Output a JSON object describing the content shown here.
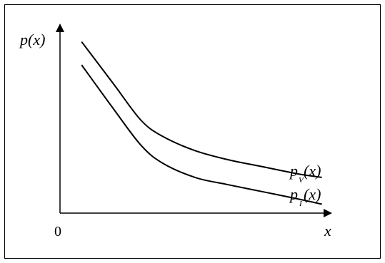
{
  "chart_data": {
    "type": "line",
    "xlabel": "x",
    "ylabel": "p(x)",
    "origin_label": "0",
    "grid": false,
    "series": [
      {
        "name": "p(x)",
        "subscript": "V",
        "points": [
          [
            0.08,
            0.96
          ],
          [
            0.2,
            0.72
          ],
          [
            0.3,
            0.52
          ],
          [
            0.38,
            0.43
          ],
          [
            0.5,
            0.35
          ],
          [
            0.62,
            0.3
          ],
          [
            0.75,
            0.26
          ],
          [
            0.88,
            0.22
          ],
          [
            0.97,
            0.2
          ]
        ]
      },
      {
        "name": "p(x)",
        "subscript": "I",
        "points": [
          [
            0.08,
            0.83
          ],
          [
            0.2,
            0.58
          ],
          [
            0.3,
            0.38
          ],
          [
            0.38,
            0.28
          ],
          [
            0.5,
            0.2
          ],
          [
            0.62,
            0.16
          ],
          [
            0.75,
            0.12
          ],
          [
            0.88,
            0.08
          ],
          [
            0.97,
            0.05
          ]
        ]
      }
    ],
    "xlim": [
      0,
      1
    ],
    "ylim": [
      0,
      1.05
    ]
  }
}
